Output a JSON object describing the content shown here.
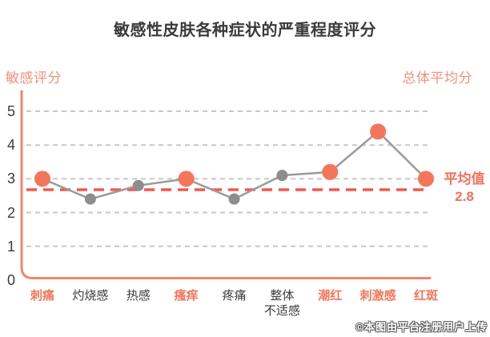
{
  "title": "敏感性皮肤各种症状的严重程度评分",
  "watermark": "©本图由平台注册用户上传",
  "colors": {
    "coral": "#f4765a",
    "coral_header": "#f2917c",
    "coral_axis": "#f0876d",
    "coral_average": "#f2584d",
    "gray_point": "#8d8d8d",
    "gray_line": "#9a9a9a",
    "gridline": "#c8c8c8",
    "text_dark": "#3b3b3b"
  },
  "chart_data": {
    "type": "line",
    "title": "敏感性皮肤各种症状的严重程度评分",
    "ylabel_left": "敏感评分",
    "ylabel_right": "总体平均分",
    "categories": [
      "刺痛",
      "灼烧感",
      "热感",
      "瘙痒",
      "疼痛",
      "整体\n不适感",
      "潮红",
      "刺激感",
      "红斑"
    ],
    "values": [
      3.0,
      2.4,
      2.8,
      3.0,
      2.4,
      3.1,
      3.2,
      4.4,
      3.0
    ],
    "highlighted": [
      true,
      false,
      false,
      true,
      false,
      false,
      true,
      true,
      true
    ],
    "y_ticks": [
      0,
      1,
      2,
      3,
      4,
      5
    ],
    "ylim": [
      0,
      5
    ],
    "grid": true,
    "legend": "none",
    "average": {
      "value": 2.8,
      "label": "平均值",
      "value_text": "2.8"
    }
  }
}
